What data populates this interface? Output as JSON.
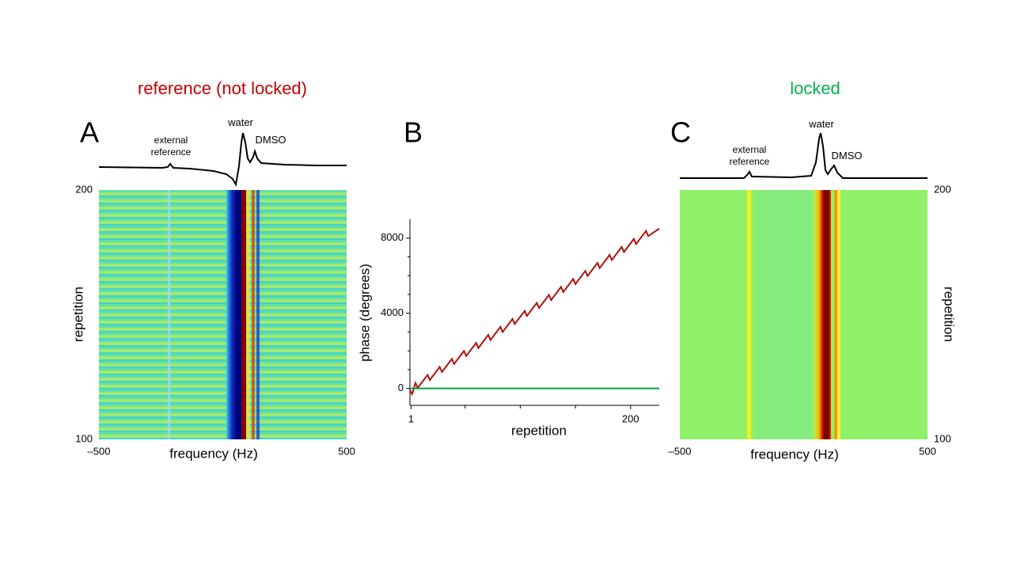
{
  "chart_data": [
    {
      "type": "heatmap",
      "panel": "A",
      "title": "reference (not locked)",
      "title_color": "#c00000",
      "annotations": [
        "external reference",
        "water",
        "DMSO"
      ],
      "xlabel": "frequency (Hz)",
      "ylabel": "repetition",
      "xlim": [
        -500,
        500
      ],
      "xticks": [
        {
          "value": -500,
          "label": "–500"
        },
        500
      ],
      "ylim": [
        100,
        200
      ],
      "yticks": [
        100,
        200
      ],
      "yaxis_side": "left"
    },
    {
      "type": "line",
      "panel": "B",
      "xlabel": "repetition",
      "ylabel": "phase (degrees)",
      "xlim": [
        0,
        226
      ],
      "xticks": [
        1,
        200
      ],
      "xminor": [
        50,
        100,
        150
      ],
      "ylim": [
        -900,
        9000
      ],
      "yticks": [
        0,
        4000,
        8000
      ],
      "yminor": [
        1000,
        2000,
        3000,
        5000,
        6000,
        7000
      ],
      "series": [
        {
          "color": "#b01010",
          "x": [
            0,
            2,
            5,
            7,
            16,
            18,
            27,
            29,
            38,
            40,
            49,
            51,
            60,
            62,
            71,
            73,
            82,
            84,
            93,
            95,
            104,
            106,
            115,
            117,
            126,
            128,
            137,
            139,
            148,
            150,
            159,
            161,
            170,
            172,
            181,
            183,
            192,
            194,
            203,
            205,
            214,
            216,
            226
          ],
          "values": [
            -100,
            -300,
            294,
            21,
            719,
            447,
            1145,
            872,
            1571,
            1298,
            1996,
            1724,
            2422,
            2149,
            2848,
            2575,
            3273,
            3001,
            3699,
            3427,
            4125,
            3852,
            4551,
            4278,
            4976,
            4704,
            5402,
            5129,
            5828,
            5555,
            6253,
            5981,
            6679,
            6407,
            7105,
            6832,
            7530,
            7258,
            7956,
            7684,
            8382,
            8109,
            8500
          ]
        },
        {
          "color": "#00a040",
          "x": [
            0,
            226
          ],
          "values": [
            0,
            0
          ]
        }
      ]
    },
    {
      "type": "heatmap",
      "panel": "C",
      "title": "locked",
      "title_color": "#00b050",
      "annotations": [
        "external reference",
        "water",
        "DMSO"
      ],
      "xlabel": "frequency (Hz)",
      "ylabel": "repetition",
      "xlim": [
        -500,
        500
      ],
      "xticks": [
        {
          "value": -500,
          "label": "–500"
        },
        500
      ],
      "ylim": [
        100,
        200
      ],
      "yticks": [
        100,
        200
      ],
      "yaxis_side": "right"
    }
  ]
}
